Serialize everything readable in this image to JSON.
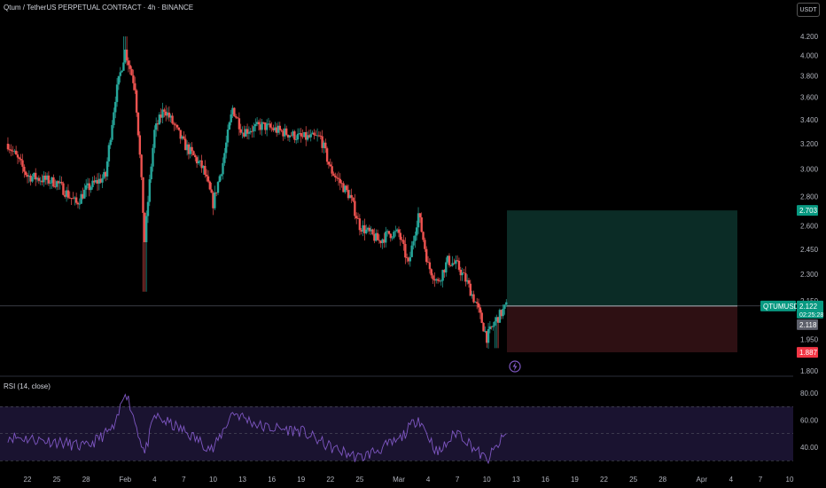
{
  "header": {
    "title": "Qtum / TetherUS PERPETUAL CONTRACT · 4h · BINANCE"
  },
  "currency_button": {
    "label": "USDT"
  },
  "rsi": {
    "label": "RSI (14, close)",
    "axis_ticks": [
      "80.00",
      "60.00",
      "40.00"
    ]
  },
  "price_axis": {
    "ticks": [
      "4.200",
      "4.000",
      "3.800",
      "3.600",
      "3.400",
      "3.200",
      "3.000",
      "2.800",
      "2.600",
      "2.450",
      "2.300",
      "2.150",
      "1.950",
      "1.800"
    ]
  },
  "price_tags": {
    "target": "2.703",
    "symbol": "QTUMUSDT.P",
    "last_price": "2.122",
    "countdown": "02:25:28",
    "secondary": "2.118",
    "stop": "1.887"
  },
  "time_axis": {
    "ticks": [
      "22",
      "25",
      "28",
      "Feb",
      "4",
      "7",
      "10",
      "13",
      "16",
      "19",
      "22",
      "25",
      "Mar",
      "4",
      "7",
      "10",
      "13",
      "16",
      "19",
      "22",
      "25",
      "28",
      "Apr",
      "4",
      "7",
      "10"
    ]
  },
  "colors": {
    "up": "#26a69a",
    "down": "#ef5350",
    "profit_zone": "#0b2c26",
    "loss_zone": "#2e1013",
    "rsi_line": "#7e57c2",
    "rsi_band": "#1a1330",
    "target_tag": "#089981",
    "stop_tag": "#f23645"
  },
  "icons": {
    "flash": "lightning-icon"
  },
  "chart_data": [
    {
      "type": "candlestick",
      "title": "Qtum / TetherUS PERPETUAL CONTRACT · 4h · BINANCE",
      "x_range": [
        "Jan 20",
        "Apr 10"
      ],
      "ylim": [
        1.8,
        4.3
      ],
      "y_scale": "log",
      "price_path": [
        [
          "Jan 20",
          3.2
        ],
        [
          "Jan 22",
          2.95
        ],
        [
          "Jan 25",
          2.9
        ],
        [
          "Jan 27",
          2.75
        ],
        [
          "Jan 28",
          2.85
        ],
        [
          "Jan 30",
          2.95
        ],
        [
          "Jan 31",
          3.6
        ],
        [
          "Feb 1",
          4.05
        ],
        [
          "Feb 2",
          3.7
        ],
        [
          "Feb 3",
          2.5
        ],
        [
          "Feb 4",
          3.3
        ],
        [
          "Feb 5",
          3.5
        ],
        [
          "Feb 7",
          3.2
        ],
        [
          "Feb 9",
          3.0
        ],
        [
          "Feb 10",
          2.75
        ],
        [
          "Feb 11",
          3.05
        ],
        [
          "Feb 12",
          3.5
        ],
        [
          "Feb 13",
          3.3
        ],
        [
          "Feb 15",
          3.35
        ],
        [
          "Feb 17",
          3.3
        ],
        [
          "Feb 19",
          3.25
        ],
        [
          "Feb 21",
          3.25
        ],
        [
          "Feb 22",
          3.0
        ],
        [
          "Feb 24",
          2.8
        ],
        [
          "Feb 25",
          2.6
        ],
        [
          "Feb 27",
          2.5
        ],
        [
          "Feb 28",
          2.55
        ],
        [
          "Mar 1",
          2.55
        ],
        [
          "Mar 2",
          2.35
        ],
        [
          "Mar 3",
          2.68
        ],
        [
          "Mar 4",
          2.35
        ],
        [
          "Mar 5",
          2.25
        ],
        [
          "Mar 6",
          2.38
        ],
        [
          "Mar 7",
          2.35
        ],
        [
          "Mar 8",
          2.25
        ],
        [
          "Mar 9",
          2.12
        ],
        [
          "Mar 10",
          1.96
        ],
        [
          "Mar 11",
          2.05
        ],
        [
          "Mar 12",
          2.12
        ]
      ],
      "price_range": {
        "high": 4.2,
        "low": 1.887
      },
      "current_price": 2.122,
      "position": {
        "entry": 2.122,
        "target": 2.703,
        "stop": 1.887
      }
    },
    {
      "type": "line",
      "title": "RSI (14, close)",
      "ylim": [
        25,
        85
      ],
      "bands": [
        70,
        50,
        30
      ],
      "path": [
        [
          "Jan 20",
          48
        ],
        [
          "Jan 25",
          44
        ],
        [
          "Jan 28",
          40
        ],
        [
          "Jan 31",
          55
        ],
        [
          "Feb 1",
          83
        ],
        [
          "Feb 3",
          35
        ],
        [
          "Feb 4",
          63
        ],
        [
          "Feb 7",
          52
        ],
        [
          "Feb 10",
          38
        ],
        [
          "Feb 12",
          66
        ],
        [
          "Feb 15",
          55
        ],
        [
          "Feb 19",
          52
        ],
        [
          "Feb 22",
          40
        ],
        [
          "Feb 25",
          32
        ],
        [
          "Mar 1",
          45
        ],
        [
          "Mar 3",
          62
        ],
        [
          "Mar 5",
          35
        ],
        [
          "Mar 7",
          52
        ],
        [
          "Mar 10",
          30
        ],
        [
          "Mar 12",
          50
        ]
      ]
    }
  ]
}
